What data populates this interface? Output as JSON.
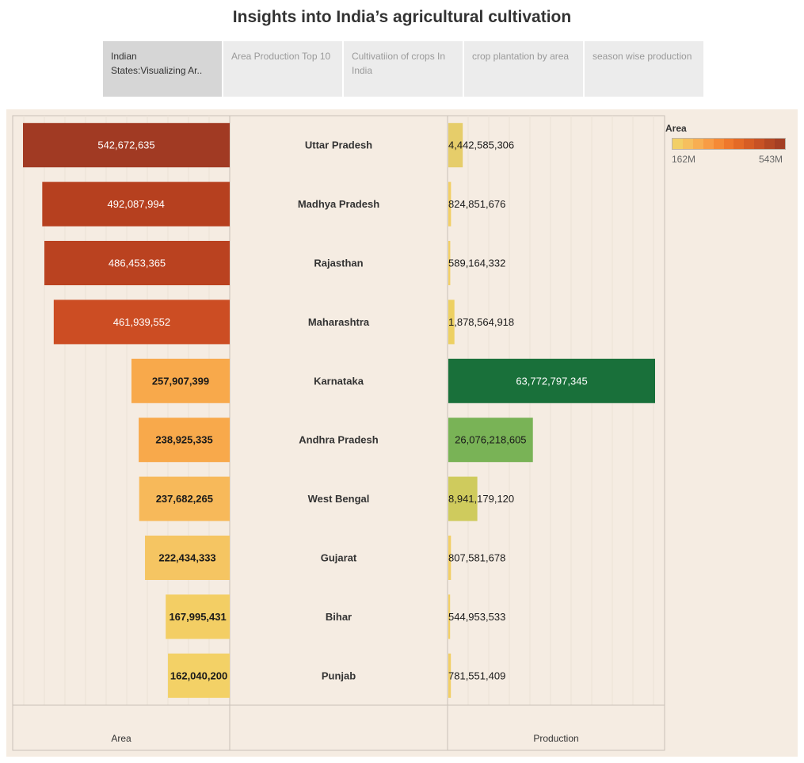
{
  "title": "Insights into India’s agricultural cultivation",
  "tabs": [
    {
      "label": "Indian States:Visualizing Ar..",
      "active": true
    },
    {
      "label": "Area Production Top 10",
      "active": false
    },
    {
      "label": "Cultivatiion of crops In India",
      "active": false
    },
    {
      "label": "crop plantation by area",
      "active": false
    },
    {
      "label": "season wise production",
      "active": false
    }
  ],
  "legend": {
    "title": "Area",
    "min_label": "162M",
    "max_label": "543M",
    "colors": [
      "#f2cf66",
      "#f6bf5e",
      "#f8ae52",
      "#f89c45",
      "#f58a36",
      "#ef782c",
      "#e46a26",
      "#d65d24",
      "#c75225",
      "#b44824",
      "#a43f24"
    ]
  },
  "chart_data": {
    "type": "bar",
    "orientation": "horizontal",
    "categories": [
      "Uttar Pradesh",
      "Madhya Pradesh",
      "Rajasthan",
      "Maharashtra",
      "Karnataka",
      "Andhra Pradesh",
      "West Bengal",
      "Gujarat",
      "Bihar",
      "Punjab"
    ],
    "series": [
      {
        "name": "Area",
        "values": [
          542672635,
          492087994,
          486453365,
          461939552,
          257907399,
          238925335,
          237682265,
          222434333,
          167995431,
          162040200
        ],
        "labels": [
          "542,672,635",
          "492,087,994",
          "486,453,365",
          "461,939,552",
          "257,907,399",
          "238,925,335",
          "237,682,265",
          "222,434,333",
          "167,995,431",
          "162,040,200"
        ],
        "colors": [
          "#a13a23",
          "#b6401f",
          "#ba4220",
          "#cc4d23",
          "#f8a94b",
          "#f8a94b",
          "#f7b95a",
          "#f5c562",
          "#f3ce64",
          "#f3d166"
        ]
      },
      {
        "name": "Production",
        "values": [
          4442585306,
          824851676,
          589164332,
          1878564918,
          63772797345,
          26076218605,
          8941179120,
          807581678,
          544953533,
          781551409
        ],
        "labels": [
          "4,442,585,306",
          "824,851,676",
          "589,164,332",
          "1,878,564,918",
          "63,772,797,345",
          "26,076,218,605",
          "8,941,179,120",
          "807,581,678",
          "544,953,533",
          "781,551,409"
        ],
        "colors": [
          "#e6cd6a",
          "#f2cf66",
          "#f2cf66",
          "#edd062",
          "#19703a",
          "#79b356",
          "#cfcb5d",
          "#f2cf66",
          "#f2cf66",
          "#f2cf66"
        ]
      }
    ],
    "xlabel_left": "Area",
    "xlabel_right": "Production",
    "grid": true
  }
}
